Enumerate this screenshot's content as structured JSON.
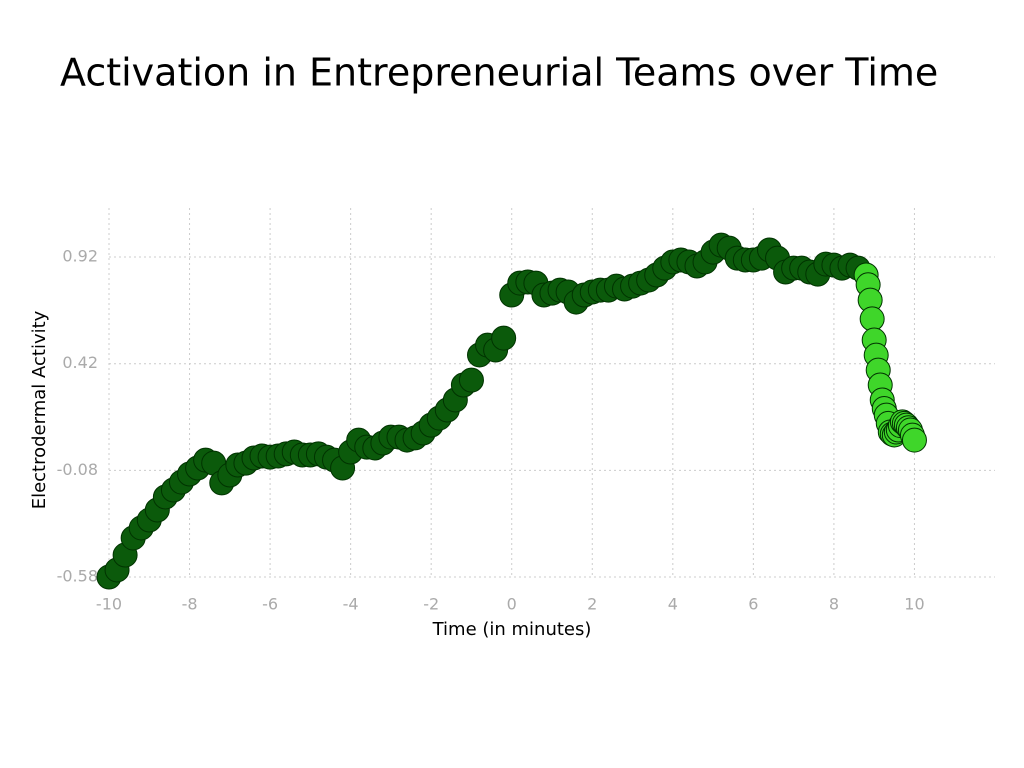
{
  "chart_data": {
    "type": "scatter",
    "title": "Activation in Entrepreneurial Teams over Time",
    "xlabel": "Time (in minutes)",
    "ylabel": "Electrodermal Activity",
    "xlim": [
      -10,
      12
    ],
    "ylim": [
      -0.58,
      1.15
    ],
    "xticks": [
      -10,
      -8,
      -6,
      -4,
      -2,
      0,
      2,
      4,
      6,
      8,
      10
    ],
    "yticks": [
      -0.58,
      -0.08,
      0.42,
      0.92
    ],
    "grid": true,
    "series": [
      {
        "color": "#0b5a0b",
        "x": [
          -10,
          -9.8,
          -9.6,
          -9.4,
          -9.2,
          -9,
          -8.8,
          -8.6,
          -8.4,
          -8.2,
          -8,
          -7.8,
          -7.6,
          -7.4,
          -7.2,
          -7,
          -6.8,
          -6.6,
          -6.4,
          -6.2,
          -6,
          -5.8,
          -5.6,
          -5.4,
          -5.2,
          -5,
          -4.8,
          -4.6,
          -4.4,
          -4.2,
          -4,
          -3.8,
          -3.6,
          -3.4,
          -3.2,
          -3,
          -2.8,
          -2.6,
          -2.4,
          -2.2,
          -2,
          -1.8,
          -1.6,
          -1.4,
          -1.2,
          -1,
          -0.8,
          -0.6,
          -0.4,
          -0.2,
          0,
          0.2,
          0.4,
          0.6,
          0.8,
          1,
          1.2,
          1.4,
          1.6,
          1.8,
          2,
          2.2,
          2.4,
          2.6,
          2.8,
          3,
          3.2,
          3.4,
          3.6,
          3.8,
          4,
          4.2,
          4.4,
          4.6,
          4.8,
          5,
          5.2,
          5.4,
          5.6,
          5.8,
          6,
          6.2,
          6.4,
          6.6,
          6.8,
          7,
          7.2,
          7.4,
          7.6,
          7.8,
          8,
          8.2,
          8.4,
          8.6
        ],
        "values": [
          -0.58,
          -0.547,
          -0.477,
          -0.397,
          -0.35,
          -0.313,
          -0.266,
          -0.205,
          -0.172,
          -0.135,
          -0.097,
          -0.069,
          -0.032,
          -0.046,
          -0.139,
          -0.102,
          -0.055,
          -0.046,
          -0.022,
          -0.013,
          -0.018,
          -0.013,
          -0.003,
          0.006,
          -0.008,
          -0.008,
          -0.003,
          -0.018,
          -0.032,
          -0.069,
          0.006,
          0.062,
          0.029,
          0.025,
          0.048,
          0.076,
          0.076,
          0.062,
          0.072,
          0.095,
          0.132,
          0.165,
          0.203,
          0.25,
          0.32,
          0.343,
          0.461,
          0.507,
          0.484,
          0.54,
          0.742,
          0.798,
          0.803,
          0.798,
          0.742,
          0.751,
          0.765,
          0.756,
          0.709,
          0.742,
          0.756,
          0.765,
          0.765,
          0.784,
          0.77,
          0.784,
          0.798,
          0.812,
          0.836,
          0.868,
          0.897,
          0.906,
          0.897,
          0.878,
          0.897,
          0.943,
          0.976,
          0.962,
          0.915,
          0.906,
          0.906,
          0.915,
          0.953,
          0.915,
          0.85,
          0.868,
          0.868,
          0.85,
          0.84,
          0.887,
          0.882,
          0.868,
          0.882,
          0.868
        ]
      },
      {
        "color": "#3fd62a",
        "x": [
          8.8,
          8.85,
          8.9,
          8.95,
          9,
          9.05,
          9.1,
          9.15,
          9.2,
          9.25,
          9.3,
          9.35,
          9.4,
          9.45,
          9.5,
          9.55,
          9.6,
          9.65,
          9.7,
          9.75,
          9.8,
          9.85,
          9.9,
          9.95,
          10
        ],
        "values": [
          0.836,
          0.79,
          0.718,
          0.63,
          0.531,
          0.46,
          0.39,
          0.32,
          0.25,
          0.21,
          0.179,
          0.14,
          0.1,
          0.09,
          0.086,
          0.1,
          0.109,
          0.13,
          0.147,
          0.14,
          0.132,
          0.12,
          0.109,
          0.085,
          0.062
        ]
      }
    ]
  }
}
